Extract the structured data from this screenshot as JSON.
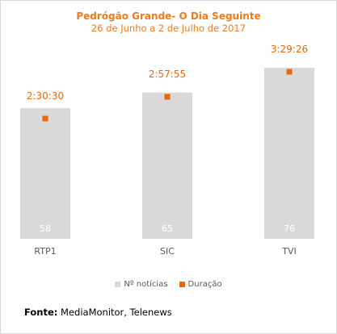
{
  "chart_data": {
    "type": "bar",
    "title": "Pedrógão Grande- O Dia Seguinte",
    "subtitle": "26 de Junho a 2 de Julho de 2017",
    "categories": [
      "RTP1",
      "SIC",
      "TVI"
    ],
    "series": [
      {
        "name": "Nº notícias",
        "values": [
          58,
          65,
          76
        ],
        "color": "#d9d9d9"
      },
      {
        "name": "Duração",
        "values": [
          "2:30:30",
          "2:57:55",
          "3:29:26"
        ],
        "seconds": [
          9030,
          10675,
          12566
        ],
        "color": "#e8690c"
      }
    ],
    "legend_position": "bottom",
    "grid": false
  },
  "source_label": "Fonte:",
  "source_text": "MediaMonitor, Telenews"
}
